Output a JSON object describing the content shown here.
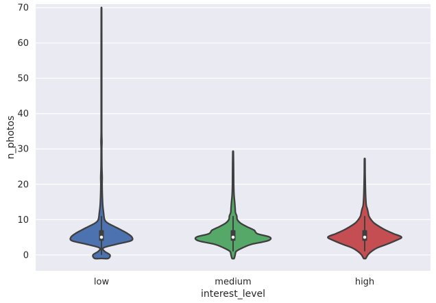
{
  "chart_data": {
    "type": "violin",
    "xlabel": "interest_level",
    "ylabel": "n_photos",
    "categories": [
      "low",
      "medium",
      "high"
    ],
    "ylim": [
      -4.5,
      71
    ],
    "yticks": [
      0,
      10,
      20,
      30,
      40,
      50,
      60,
      70
    ],
    "grid": true,
    "background": "#EAEAF2",
    "grid_color": "#FFFFFF",
    "outline_color": "#3F3F3F",
    "series": [
      {
        "category": "low",
        "color": "#4C72B0",
        "min": -1,
        "max": 69,
        "q1": 4,
        "median": 5,
        "q3": 7,
        "whisker_low": 0,
        "whisker_high": 11,
        "profile": [
          [
            -1,
            0.13
          ],
          [
            0,
            0.16
          ],
          [
            1,
            0.06
          ],
          [
            2,
            0.04
          ],
          [
            3,
            0.28
          ],
          [
            4,
            0.56
          ],
          [
            5,
            0.58
          ],
          [
            6,
            0.5
          ],
          [
            7,
            0.38
          ],
          [
            8,
            0.25
          ],
          [
            9,
            0.12
          ],
          [
            10,
            0.06
          ],
          [
            12,
            0.04
          ],
          [
            14,
            0.025
          ],
          [
            17,
            0.016
          ],
          [
            20,
            0.012
          ],
          [
            22,
            0.014
          ],
          [
            25,
            0.008
          ],
          [
            30,
            0.006
          ],
          [
            32,
            0.009
          ],
          [
            35,
            0.005
          ],
          [
            45,
            0.005
          ],
          [
            55,
            0.005
          ],
          [
            69,
            0.004
          ]
        ]
      },
      {
        "category": "medium",
        "color": "#55A868",
        "min": -1,
        "max": 29,
        "q1": 4,
        "median": 5,
        "q3": 7,
        "whisker_low": 1,
        "whisker_high": 11,
        "profile": [
          [
            -1,
            0.02
          ],
          [
            0,
            0.04
          ],
          [
            1,
            0.06
          ],
          [
            2,
            0.18
          ],
          [
            3,
            0.35
          ],
          [
            4,
            0.66
          ],
          [
            5,
            0.7
          ],
          [
            6,
            0.46
          ],
          [
            7,
            0.4
          ],
          [
            8,
            0.26
          ],
          [
            9,
            0.14
          ],
          [
            10,
            0.08
          ],
          [
            11,
            0.07
          ],
          [
            12,
            0.045
          ],
          [
            13,
            0.04
          ],
          [
            15,
            0.03
          ],
          [
            17,
            0.018
          ],
          [
            20,
            0.012
          ],
          [
            24,
            0.01
          ],
          [
            29,
            0.006
          ]
        ]
      },
      {
        "category": "high",
        "color": "#C44E52",
        "min": -1,
        "max": 27,
        "q1": 4,
        "median": 5,
        "q3": 7,
        "whisker_low": 1,
        "whisker_high": 11,
        "profile": [
          [
            -1,
            0.02
          ],
          [
            0,
            0.06
          ],
          [
            1,
            0.13
          ],
          [
            2,
            0.24
          ],
          [
            3,
            0.42
          ],
          [
            4,
            0.58
          ],
          [
            5,
            0.7
          ],
          [
            6,
            0.55
          ],
          [
            7,
            0.4
          ],
          [
            8,
            0.28
          ],
          [
            9,
            0.18
          ],
          [
            10,
            0.12
          ],
          [
            11,
            0.08
          ],
          [
            12,
            0.065
          ],
          [
            13,
            0.05
          ],
          [
            14,
            0.03
          ],
          [
            16,
            0.02
          ],
          [
            18,
            0.015
          ],
          [
            20,
            0.012
          ],
          [
            23,
            0.008
          ],
          [
            27,
            0.006
          ]
        ]
      }
    ]
  }
}
